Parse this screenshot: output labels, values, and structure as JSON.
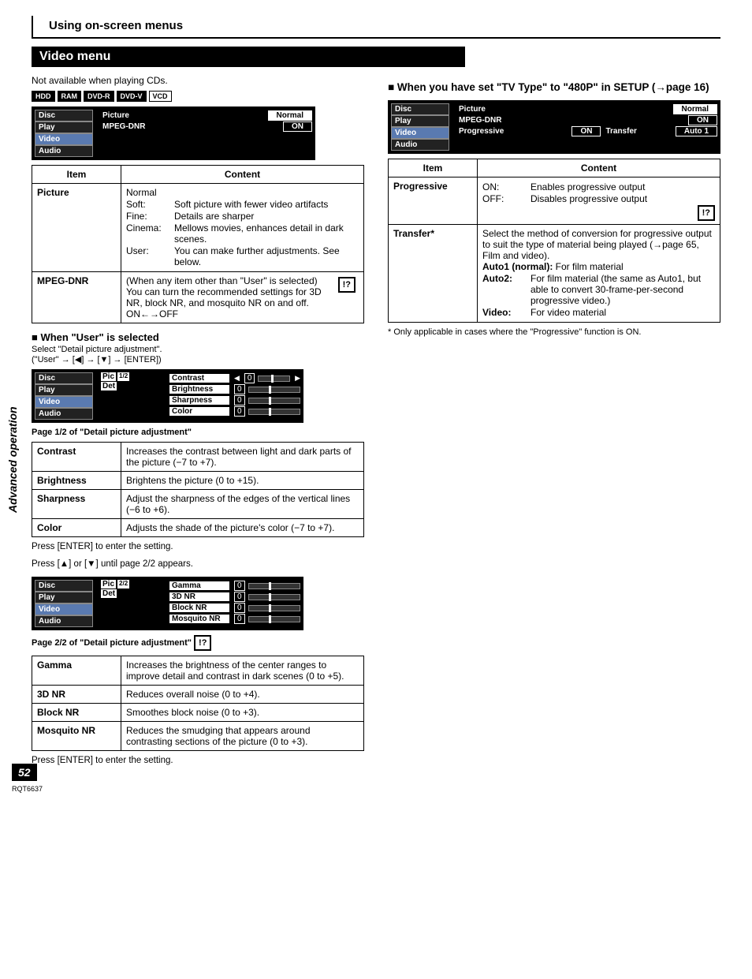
{
  "sidebar_label": "Advanced operation",
  "page_number": "52",
  "doc_code": "RQT6637",
  "top_title": "Using on-screen menus",
  "section_title": "Video menu",
  "cd_note": "Not available when playing CDs.",
  "badges": [
    {
      "label": "HDD",
      "inv": true
    },
    {
      "label": "RAM",
      "inv": true
    },
    {
      "label": "DVD-R",
      "inv": true
    },
    {
      "label": "DVD-V",
      "inv": true
    },
    {
      "label": "VCD",
      "inv": false
    }
  ],
  "osd_main": {
    "tabs": [
      "Disc",
      "Play",
      "Video",
      "Audio"
    ],
    "rows": [
      {
        "label": "Picture",
        "value": "Normal",
        "inv": true
      },
      {
        "label": "MPEG-DNR",
        "value": "ON",
        "inv": false
      }
    ]
  },
  "table_main": {
    "headers": [
      "Item",
      "Content"
    ],
    "rows": [
      {
        "item": "Picture",
        "lead": "Normal",
        "defs": [
          {
            "k": "Soft:",
            "v": "Soft picture with fewer video artifacts"
          },
          {
            "k": "Fine:",
            "v": "Details are sharper"
          },
          {
            "k": "Cinema:",
            "v": "Mellows movies, enhances detail in dark scenes."
          },
          {
            "k": "User:",
            "v": "You can make further adjustments. See below."
          }
        ]
      },
      {
        "item": "MPEG-DNR",
        "body": "(When any item other than \"User\" is selected)\nYou can turn the recommended settings for 3D NR, block NR, and mosquito NR on and off.\nON←→OFF",
        "icon": true
      }
    ]
  },
  "user_heading": "When \"User\" is selected",
  "user_sub1": "Select \"Detail picture adjustment\".",
  "user_sub2": "(\"User\" → [◀] → [▼] → [ENTER])",
  "osd_p1": {
    "tabs": [
      "Disc",
      "Play",
      "Video",
      "Audio"
    ],
    "page": "1/2",
    "sliders": [
      "Contrast",
      "Brightness",
      "Sharpness",
      "Color"
    ]
  },
  "p1_caption": "Page 1/2 of \"Detail picture adjustment\"",
  "table_p1": [
    {
      "item": "Contrast",
      "body": "Increases the contrast between light and dark parts of the picture (−7 to +7)."
    },
    {
      "item": "Brightness",
      "body": "Brightens the picture (0 to +15)."
    },
    {
      "item": "Sharpness",
      "body": "Adjust the sharpness of the edges of the vertical lines (−6 to +6)."
    },
    {
      "item": "Color",
      "body": "Adjusts the shade of the picture's color (−7 to +7)."
    }
  ],
  "press_enter": "Press [ENTER] to enter the setting.",
  "press_page": "Press [▲] or [▼] until page 2/2 appears.",
  "osd_p2": {
    "tabs": [
      "Disc",
      "Play",
      "Video",
      "Audio"
    ],
    "page": "2/2",
    "sliders": [
      "Gamma",
      "3D NR",
      "Block NR",
      "Mosquito NR"
    ]
  },
  "p2_caption": "Page 2/2 of \"Detail picture adjustment\"",
  "table_p2": [
    {
      "item": "Gamma",
      "body": "Increases the brightness of the center ranges to improve detail and contrast in dark scenes (0 to +5)."
    },
    {
      "item": "3D NR",
      "body": "Reduces overall noise (0 to +4)."
    },
    {
      "item": "Block NR",
      "body": "Smoothes block noise (0 to +3)."
    },
    {
      "item": "Mosquito NR",
      "body": "Reduces the smudging that appears around contrasting sections of the picture (0 to +3)."
    }
  ],
  "right_heading": "When you have set \"TV Type\" to \"480P\" in SETUP (→page 16)",
  "osd_right": {
    "tabs": [
      "Disc",
      "Play",
      "Video",
      "Audio"
    ],
    "rows": [
      {
        "label": "Picture",
        "value": "Normal",
        "inv": true
      },
      {
        "label": "MPEG-DNR",
        "value": "ON",
        "inv": false
      },
      {
        "label": "Progressive",
        "value": "ON",
        "extra_label": "Transfer",
        "extra_value": "Auto 1"
      }
    ]
  },
  "table_right": {
    "headers": [
      "Item",
      "Content"
    ],
    "rows": [
      {
        "item": "Progressive",
        "defs": [
          {
            "k": "ON:",
            "v": "Enables progressive output"
          },
          {
            "k": "OFF:",
            "v": "Disables progressive output"
          }
        ],
        "icon": true
      },
      {
        "item": "Transfer*",
        "lead": "Select the method of conversion for progressive output to suit the type of material being played (→page 65, Film and video).",
        "defs": [
          {
            "k": "Auto1 (normal):",
            "v": "For film material",
            "full": true
          },
          {
            "k": "Auto2:",
            "v": "For film material (the same as Auto1, but able to convert 30-frame-per-second progressive video.)"
          },
          {
            "k": "Video:",
            "v": "For video material"
          }
        ]
      }
    ]
  },
  "right_footnote": "* Only applicable in cases where the \"Progressive\" function is ON."
}
